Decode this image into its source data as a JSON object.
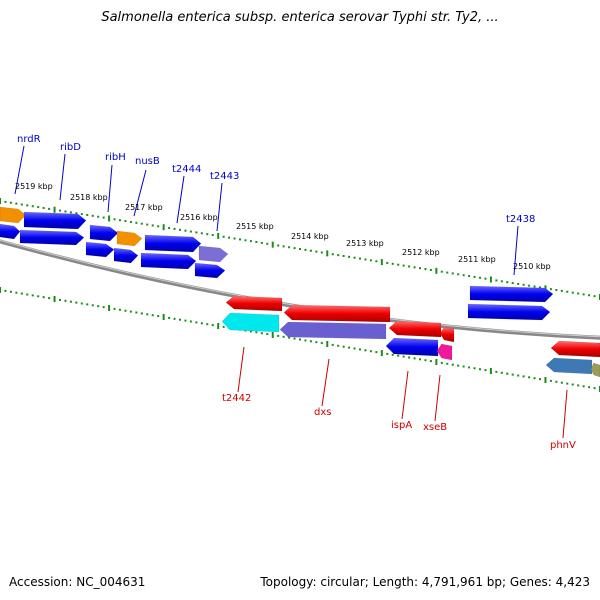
{
  "title": "Salmonella enterica subsp. enterica serovar Typhi str. Ty2, ...",
  "footer": {
    "accession": "Accession: NC_004631",
    "summary": "Topology: circular; Length: 4,791,961 bp; Genes: 4,423"
  },
  "colors": {
    "forward_gene": "#0000ee",
    "reverse_gene": "#ee0000",
    "tick": "#1a8c1a",
    "backbone": "#888888",
    "top_label": "#0000cc",
    "bottom_label": "#cc0000"
  },
  "scale_labels": [
    "2519 kbp",
    "2518 kbp",
    "2517 kbp",
    "2516 kbp",
    "2515 kbp",
    "2514 kbp",
    "2513 kbp",
    "2512 kbp",
    "2511 kbp",
    "2510 kbp"
  ],
  "top_gene_labels": [
    "nrdR",
    "ribD",
    "ribH",
    "nusB",
    "t2444",
    "t2443",
    "t2438"
  ],
  "bottom_gene_labels": [
    "t2442",
    "dxs",
    "ispA",
    "xseB",
    "phnV"
  ]
}
